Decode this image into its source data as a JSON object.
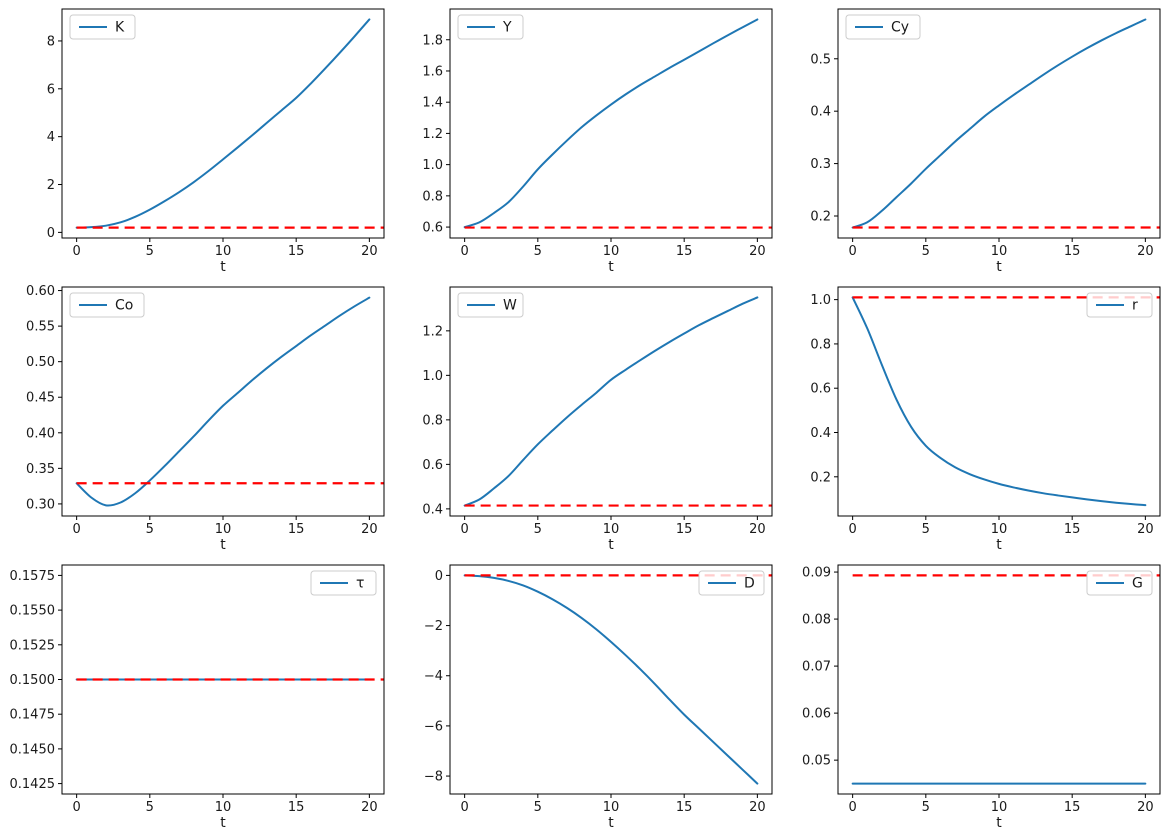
{
  "figure": {
    "background": "#ffffff",
    "line_color": "#1f77b4",
    "steady_color": "#ff0000",
    "xlabel": "t"
  },
  "chart_data": [
    {
      "type": "line",
      "key": "K",
      "legend_label": "K",
      "legend_loc": "upper-left",
      "xlabel": "t",
      "xlim": [
        -1,
        21
      ],
      "xticks": [
        0,
        5,
        10,
        15,
        20
      ],
      "xtick_labels": [
        "0",
        "5",
        "10",
        "15",
        "20"
      ],
      "ylim": [
        -0.235,
        9.335
      ],
      "yticks": [
        0,
        2,
        4,
        6,
        8
      ],
      "ytick_labels": [
        "0",
        "2",
        "4",
        "6",
        "8"
      ],
      "x": [
        0,
        1,
        2,
        3,
        4,
        5,
        6,
        7,
        8,
        9,
        10,
        11,
        12,
        13,
        14,
        15,
        16,
        17,
        18,
        19,
        20
      ],
      "values": [
        0.2,
        0.22,
        0.28,
        0.42,
        0.65,
        0.95,
        1.3,
        1.68,
        2.1,
        2.56,
        3.05,
        3.55,
        4.06,
        4.58,
        5.1,
        5.62,
        6.22,
        6.86,
        7.52,
        8.2,
        8.9
      ],
      "steady_value": 0.2
    },
    {
      "type": "line",
      "key": "Y",
      "legend_label": "Y",
      "legend_loc": "upper-left",
      "xlabel": "t",
      "xlim": [
        -1,
        21
      ],
      "xticks": [
        0,
        5,
        10,
        15,
        20
      ],
      "xtick_labels": [
        "0",
        "5",
        "10",
        "15",
        "20"
      ],
      "ylim": [
        0.53,
        1.997
      ],
      "yticks": [
        0.6,
        0.8,
        1.0,
        1.2,
        1.4,
        1.6,
        1.8
      ],
      "ytick_labels": [
        "0.6",
        "0.8",
        "1.0",
        "1.2",
        "1.4",
        "1.6",
        "1.8"
      ],
      "x": [
        0,
        1,
        2,
        3,
        4,
        5,
        6,
        7,
        8,
        9,
        10,
        11,
        12,
        13,
        14,
        15,
        16,
        17,
        18,
        19,
        20
      ],
      "values": [
        0.6,
        0.63,
        0.69,
        0.76,
        0.86,
        0.97,
        1.065,
        1.155,
        1.24,
        1.315,
        1.385,
        1.45,
        1.51,
        1.565,
        1.62,
        1.672,
        1.725,
        1.778,
        1.83,
        1.88,
        1.93
      ],
      "steady_value": 0.597
    },
    {
      "type": "line",
      "key": "Cy",
      "legend_label": "Cy",
      "legend_loc": "upper-left",
      "xlabel": "t",
      "xlim": [
        -1,
        21
      ],
      "xticks": [
        0,
        5,
        10,
        15,
        20
      ],
      "xtick_labels": [
        "0",
        "5",
        "10",
        "15",
        "20"
      ],
      "ylim": [
        0.158,
        0.595
      ],
      "yticks": [
        0.2,
        0.3,
        0.4,
        0.5
      ],
      "ytick_labels": [
        "0.2",
        "0.3",
        "0.4",
        "0.5"
      ],
      "x": [
        0,
        1,
        2,
        3,
        4,
        5,
        6,
        7,
        8,
        9,
        10,
        11,
        12,
        13,
        14,
        15,
        16,
        17,
        18,
        19,
        20
      ],
      "values": [
        0.178,
        0.188,
        0.21,
        0.236,
        0.262,
        0.29,
        0.316,
        0.342,
        0.366,
        0.39,
        0.411,
        0.431,
        0.45,
        0.469,
        0.487,
        0.504,
        0.52,
        0.535,
        0.549,
        0.562,
        0.575
      ],
      "steady_value": 0.178
    },
    {
      "type": "line",
      "key": "Co",
      "legend_label": "Co",
      "legend_loc": "upper-left",
      "xlabel": "t",
      "xlim": [
        -1,
        21
      ],
      "xticks": [
        0,
        5,
        10,
        15,
        20
      ],
      "xtick_labels": [
        "0",
        "5",
        "10",
        "15",
        "20"
      ],
      "ylim": [
        0.283,
        0.605
      ],
      "yticks": [
        0.3,
        0.35,
        0.4,
        0.45,
        0.5,
        0.55,
        0.6
      ],
      "ytick_labels": [
        "0.30",
        "0.35",
        "0.40",
        "0.45",
        "0.50",
        "0.55",
        "0.60"
      ],
      "x": [
        0,
        1,
        2,
        3,
        4,
        5,
        6,
        7,
        8,
        9,
        10,
        11,
        12,
        13,
        14,
        15,
        16,
        17,
        18,
        19,
        20
      ],
      "values": [
        0.329,
        0.309,
        0.298,
        0.302,
        0.315,
        0.333,
        0.353,
        0.374,
        0.395,
        0.417,
        0.438,
        0.456,
        0.474,
        0.491,
        0.507,
        0.522,
        0.537,
        0.551,
        0.565,
        0.578,
        0.59
      ],
      "steady_value": 0.329
    },
    {
      "type": "line",
      "key": "W",
      "legend_label": "W",
      "legend_loc": "upper-left",
      "xlabel": "t",
      "xlim": [
        -1,
        21
      ],
      "xticks": [
        0,
        5,
        10,
        15,
        20
      ],
      "xtick_labels": [
        "0",
        "5",
        "10",
        "15",
        "20"
      ],
      "ylim": [
        0.368,
        1.397
      ],
      "yticks": [
        0.4,
        0.6,
        0.8,
        1.0,
        1.2
      ],
      "ytick_labels": [
        "0.4",
        "0.6",
        "0.8",
        "1.0",
        "1.2"
      ],
      "x": [
        0,
        1,
        2,
        3,
        4,
        5,
        6,
        7,
        8,
        9,
        10,
        11,
        12,
        13,
        14,
        15,
        16,
        17,
        18,
        19,
        20
      ],
      "values": [
        0.415,
        0.442,
        0.492,
        0.548,
        0.62,
        0.69,
        0.752,
        0.812,
        0.868,
        0.922,
        0.98,
        1.025,
        1.068,
        1.11,
        1.15,
        1.188,
        1.225,
        1.258,
        1.29,
        1.322,
        1.35
      ],
      "steady_value": 0.415
    },
    {
      "type": "line",
      "key": "r",
      "legend_label": "r",
      "legend_loc": "upper-right",
      "xlabel": "t",
      "xlim": [
        -1,
        21
      ],
      "xticks": [
        0,
        5,
        10,
        15,
        20
      ],
      "xtick_labels": [
        "0",
        "5",
        "10",
        "15",
        "20"
      ],
      "ylim": [
        0.023,
        1.057
      ],
      "yticks": [
        0.2,
        0.4,
        0.6,
        0.8,
        1.0
      ],
      "ytick_labels": [
        "0.2",
        "0.4",
        "0.6",
        "0.8",
        "1.0"
      ],
      "x": [
        0,
        1,
        2,
        3,
        4,
        5,
        6,
        7,
        8,
        9,
        10,
        11,
        12,
        13,
        14,
        15,
        16,
        17,
        18,
        19,
        20
      ],
      "values": [
        1.01,
        0.87,
        0.705,
        0.548,
        0.425,
        0.34,
        0.285,
        0.243,
        0.212,
        0.188,
        0.168,
        0.152,
        0.138,
        0.126,
        0.116,
        0.107,
        0.098,
        0.09,
        0.083,
        0.077,
        0.072
      ],
      "steady_value": 1.01
    },
    {
      "type": "line",
      "key": "tau",
      "legend_label": "τ",
      "legend_loc": "upper-right",
      "xlabel": "t",
      "xlim": [
        -1,
        21
      ],
      "xticks": [
        0,
        5,
        10,
        15,
        20
      ],
      "xtick_labels": [
        "0",
        "5",
        "10",
        "15",
        "20"
      ],
      "ylim": [
        0.14175,
        0.15825
      ],
      "yticks": [
        0.1425,
        0.145,
        0.1475,
        0.15,
        0.1525,
        0.155,
        0.1575
      ],
      "ytick_labels": [
        "0.1425",
        "0.1450",
        "0.1475",
        "0.1500",
        "0.1525",
        "0.1550",
        "0.1575"
      ],
      "x": [
        0,
        1,
        2,
        3,
        4,
        5,
        6,
        7,
        8,
        9,
        10,
        11,
        12,
        13,
        14,
        15,
        16,
        17,
        18,
        19,
        20
      ],
      "values": [
        0.15,
        0.15,
        0.15,
        0.15,
        0.15,
        0.15,
        0.15,
        0.15,
        0.15,
        0.15,
        0.15,
        0.15,
        0.15,
        0.15,
        0.15,
        0.15,
        0.15,
        0.15,
        0.15,
        0.15,
        0.15
      ],
      "steady_value": 0.15
    },
    {
      "type": "line",
      "key": "D",
      "legend_label": "D",
      "legend_loc": "upper-right",
      "xlabel": "t",
      "xlim": [
        -1,
        21
      ],
      "xticks": [
        0,
        5,
        10,
        15,
        20
      ],
      "xtick_labels": [
        "0",
        "5",
        "10",
        "15",
        "20"
      ],
      "ylim": [
        -8.715,
        0.415
      ],
      "yticks": [
        0,
        -2,
        -4,
        -6,
        -8
      ],
      "ytick_labels": [
        "0",
        "−2",
        "−4",
        "−6",
        "−8"
      ],
      "x": [
        0,
        1,
        2,
        3,
        4,
        5,
        6,
        7,
        8,
        9,
        10,
        11,
        12,
        13,
        14,
        15,
        16,
        17,
        18,
        19,
        20
      ],
      "values": [
        0.0,
        -0.03,
        -0.1,
        -0.22,
        -0.4,
        -0.65,
        -0.95,
        -1.3,
        -1.7,
        -2.15,
        -2.65,
        -3.18,
        -3.74,
        -4.33,
        -4.95,
        -5.55,
        -6.1,
        -6.65,
        -7.2,
        -7.75,
        -8.3
      ],
      "steady_value": 0.0
    },
    {
      "type": "line",
      "key": "G",
      "legend_label": "G",
      "legend_loc": "upper-right",
      "xlabel": "t",
      "xlim": [
        -1,
        21
      ],
      "xticks": [
        0,
        5,
        10,
        15,
        20
      ],
      "xtick_labels": [
        "0",
        "5",
        "10",
        "15",
        "20"
      ],
      "ylim": [
        0.0428,
        0.0915
      ],
      "yticks": [
        0.05,
        0.06,
        0.07,
        0.08,
        0.09
      ],
      "ytick_labels": [
        "0.05",
        "0.06",
        "0.07",
        "0.08",
        "0.09"
      ],
      "x": [
        0,
        1,
        2,
        3,
        4,
        5,
        6,
        7,
        8,
        9,
        10,
        11,
        12,
        13,
        14,
        15,
        16,
        17,
        18,
        19,
        20
      ],
      "values": [
        0.045,
        0.045,
        0.045,
        0.045,
        0.045,
        0.045,
        0.045,
        0.045,
        0.045,
        0.045,
        0.045,
        0.045,
        0.045,
        0.045,
        0.045,
        0.045,
        0.045,
        0.045,
        0.045,
        0.045,
        0.045
      ],
      "steady_value": 0.0893
    }
  ]
}
